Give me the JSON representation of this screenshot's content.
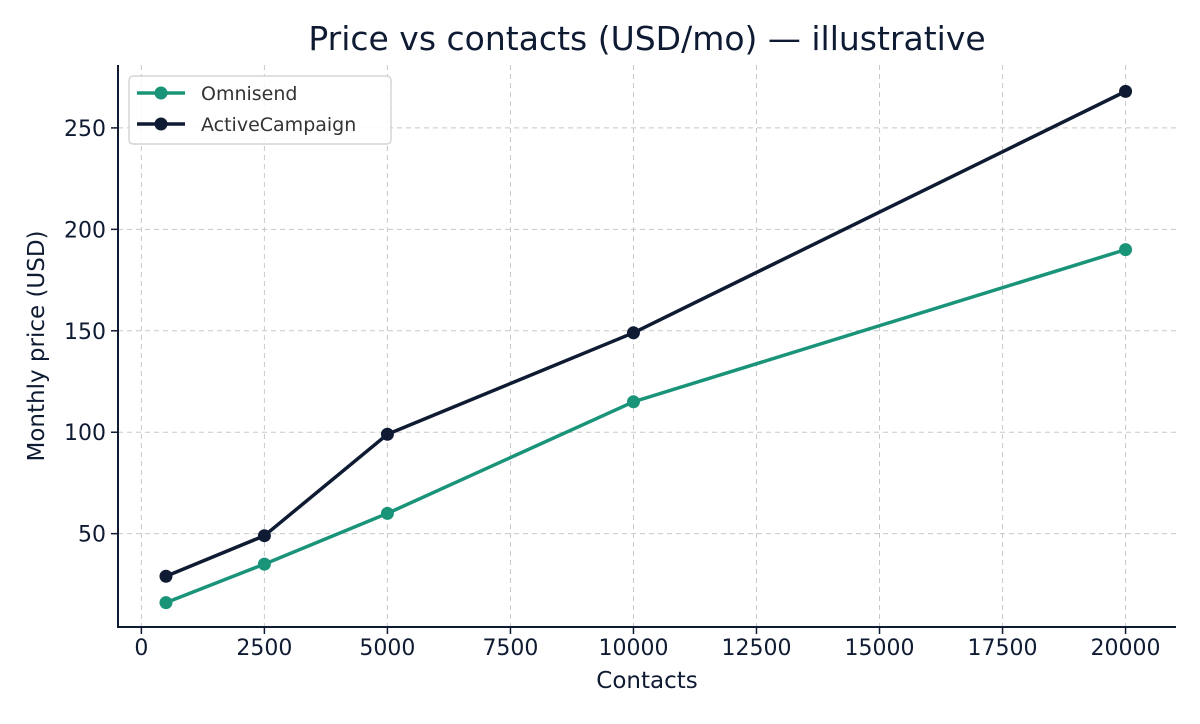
{
  "chart_data": {
    "type": "line",
    "title": "Price vs contacts (USD/mo) — illustrative",
    "xlabel": "Contacts",
    "ylabel": "Monthly price (USD)",
    "x": [
      500,
      2500,
      5000,
      10000,
      20000
    ],
    "series": [
      {
        "name": "Omnisend",
        "color": "#1a9479",
        "values": [
          16,
          35,
          60,
          115,
          190
        ]
      },
      {
        "name": "ActiveCampaign",
        "color": "#0f1b33",
        "values": [
          29,
          49,
          99,
          149,
          268
        ]
      }
    ],
    "xlim": [
      -475,
      21025
    ],
    "ylim": [
      4,
      281
    ],
    "xticks": [
      0,
      2500,
      5000,
      7500,
      10000,
      12500,
      15000,
      17500,
      20000
    ],
    "yticks": [
      50,
      100,
      150,
      200,
      250
    ],
    "grid": true,
    "legend_position": "upper left"
  },
  "colors": {
    "axis": "#0f1b33",
    "grid": "#c8c8c8",
    "text": "#0f1b33",
    "legend_border": "#cccccc"
  }
}
